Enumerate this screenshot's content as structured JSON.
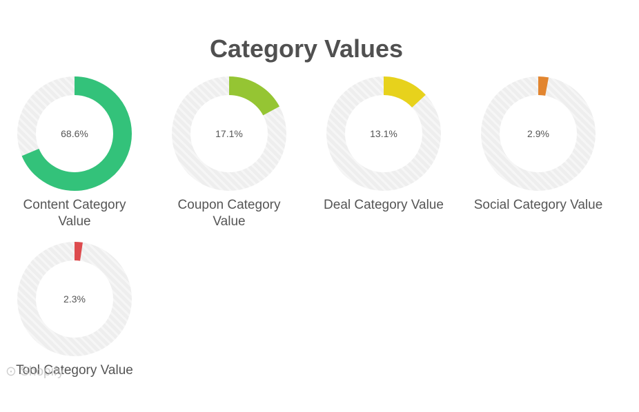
{
  "chart_data": {
    "type": "pie",
    "title": "Category Values",
    "series": [
      {
        "name": "Content Category Value",
        "value": 68.6,
        "value_label": "68.6%",
        "color": "#33c27a"
      },
      {
        "name": "Coupon Category Value",
        "value": 17.1,
        "value_label": "17.1%",
        "color": "#95c533"
      },
      {
        "name": "Deal Category Value",
        "value": 13.1,
        "value_label": "13.1%",
        "color": "#e7d21c"
      },
      {
        "name": "Social Category Value",
        "value": 2.9,
        "value_label": "2.9%",
        "color": "#e2852f"
      },
      {
        "name": "Tool Category Value",
        "value": 2.3,
        "value_label": "2.3%",
        "color": "#dd4b4e"
      }
    ],
    "track_color": "#eeeeee",
    "grid": false,
    "legend": "none"
  },
  "watermark": "Shopify"
}
